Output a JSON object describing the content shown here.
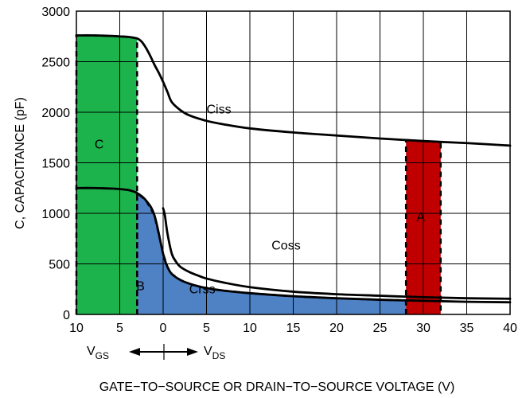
{
  "chart_data": {
    "type": "line",
    "ylabel": "C, CAPACITANCE (pF)",
    "xlabel": "GATE−TO−SOURCE OR DRAIN−TO−SOURCE VOLTAGE (V)",
    "ylim": [
      0,
      3000
    ],
    "y_ticks": [
      "0",
      "500",
      "1000",
      "1500",
      "2000",
      "2500",
      "3000"
    ],
    "y_tick_values": [
      0,
      500,
      1000,
      1500,
      2000,
      2500,
      3000
    ],
    "x_ticks": [
      "10",
      "5",
      "0",
      "5",
      "10",
      "15",
      "20",
      "25",
      "30",
      "35",
      "40"
    ],
    "x_tick_values": [
      -10,
      -5,
      0,
      5,
      10,
      15,
      20,
      25,
      30,
      35,
      40
    ],
    "xlim": [
      -10,
      40
    ],
    "grid": true,
    "axis_direction_labels": {
      "left": {
        "main": "V",
        "sub": "GS"
      },
      "right": {
        "main": "V",
        "sub": "DS"
      }
    },
    "series": [
      {
        "name": "Ciss",
        "color": "#000000",
        "x": [
          -10,
          -8,
          -6,
          -5,
          -4,
          -3,
          -2.5,
          -2,
          -1.5,
          -1,
          -0.5,
          0,
          0.5,
          1,
          2,
          3,
          5,
          7,
          10,
          15,
          20,
          25,
          30,
          35,
          40
        ],
        "y": [
          2760,
          2760,
          2755,
          2750,
          2745,
          2730,
          2700,
          2640,
          2560,
          2470,
          2390,
          2300,
          2200,
          2100,
          2020,
          1970,
          1915,
          1880,
          1840,
          1800,
          1770,
          1740,
          1715,
          1695,
          1670
        ]
      },
      {
        "name": "Coss",
        "color": "#000000",
        "x": [
          0,
          0.2,
          0.5,
          1,
          1.5,
          2,
          3,
          4,
          5,
          7,
          10,
          15,
          20,
          25,
          30,
          35,
          40
        ],
        "y": [
          1050,
          980,
          800,
          600,
          520,
          470,
          420,
          385,
          355,
          315,
          270,
          225,
          200,
          185,
          170,
          160,
          155
        ]
      },
      {
        "name": "Crss",
        "color": "#000000",
        "x": [
          -10,
          -8,
          -6,
          -5,
          -4,
          -3,
          -2,
          -1,
          0,
          0.5,
          1,
          2,
          3,
          4,
          5,
          7,
          10,
          15,
          20,
          25,
          30,
          35,
          40
        ],
        "y": [
          1250,
          1250,
          1245,
          1240,
          1230,
          1200,
          1130,
          980,
          600,
          470,
          400,
          340,
          305,
          280,
          260,
          235,
          210,
          180,
          160,
          145,
          135,
          125,
          120
        ]
      }
    ],
    "regions": [
      {
        "label": "C",
        "color": "#1DB34C",
        "x_range": [
          -10,
          -3
        ],
        "y_bottom": 0,
        "top": "Ciss"
      },
      {
        "label": "B",
        "color": "#4F81C5",
        "x_range": [
          -3,
          28
        ],
        "y_bottom": 0,
        "top": "Crss"
      },
      {
        "label": "A",
        "color": "#C00000",
        "x_range": [
          28,
          32
        ],
        "y_bottom": 0,
        "top": "Ciss"
      }
    ]
  }
}
